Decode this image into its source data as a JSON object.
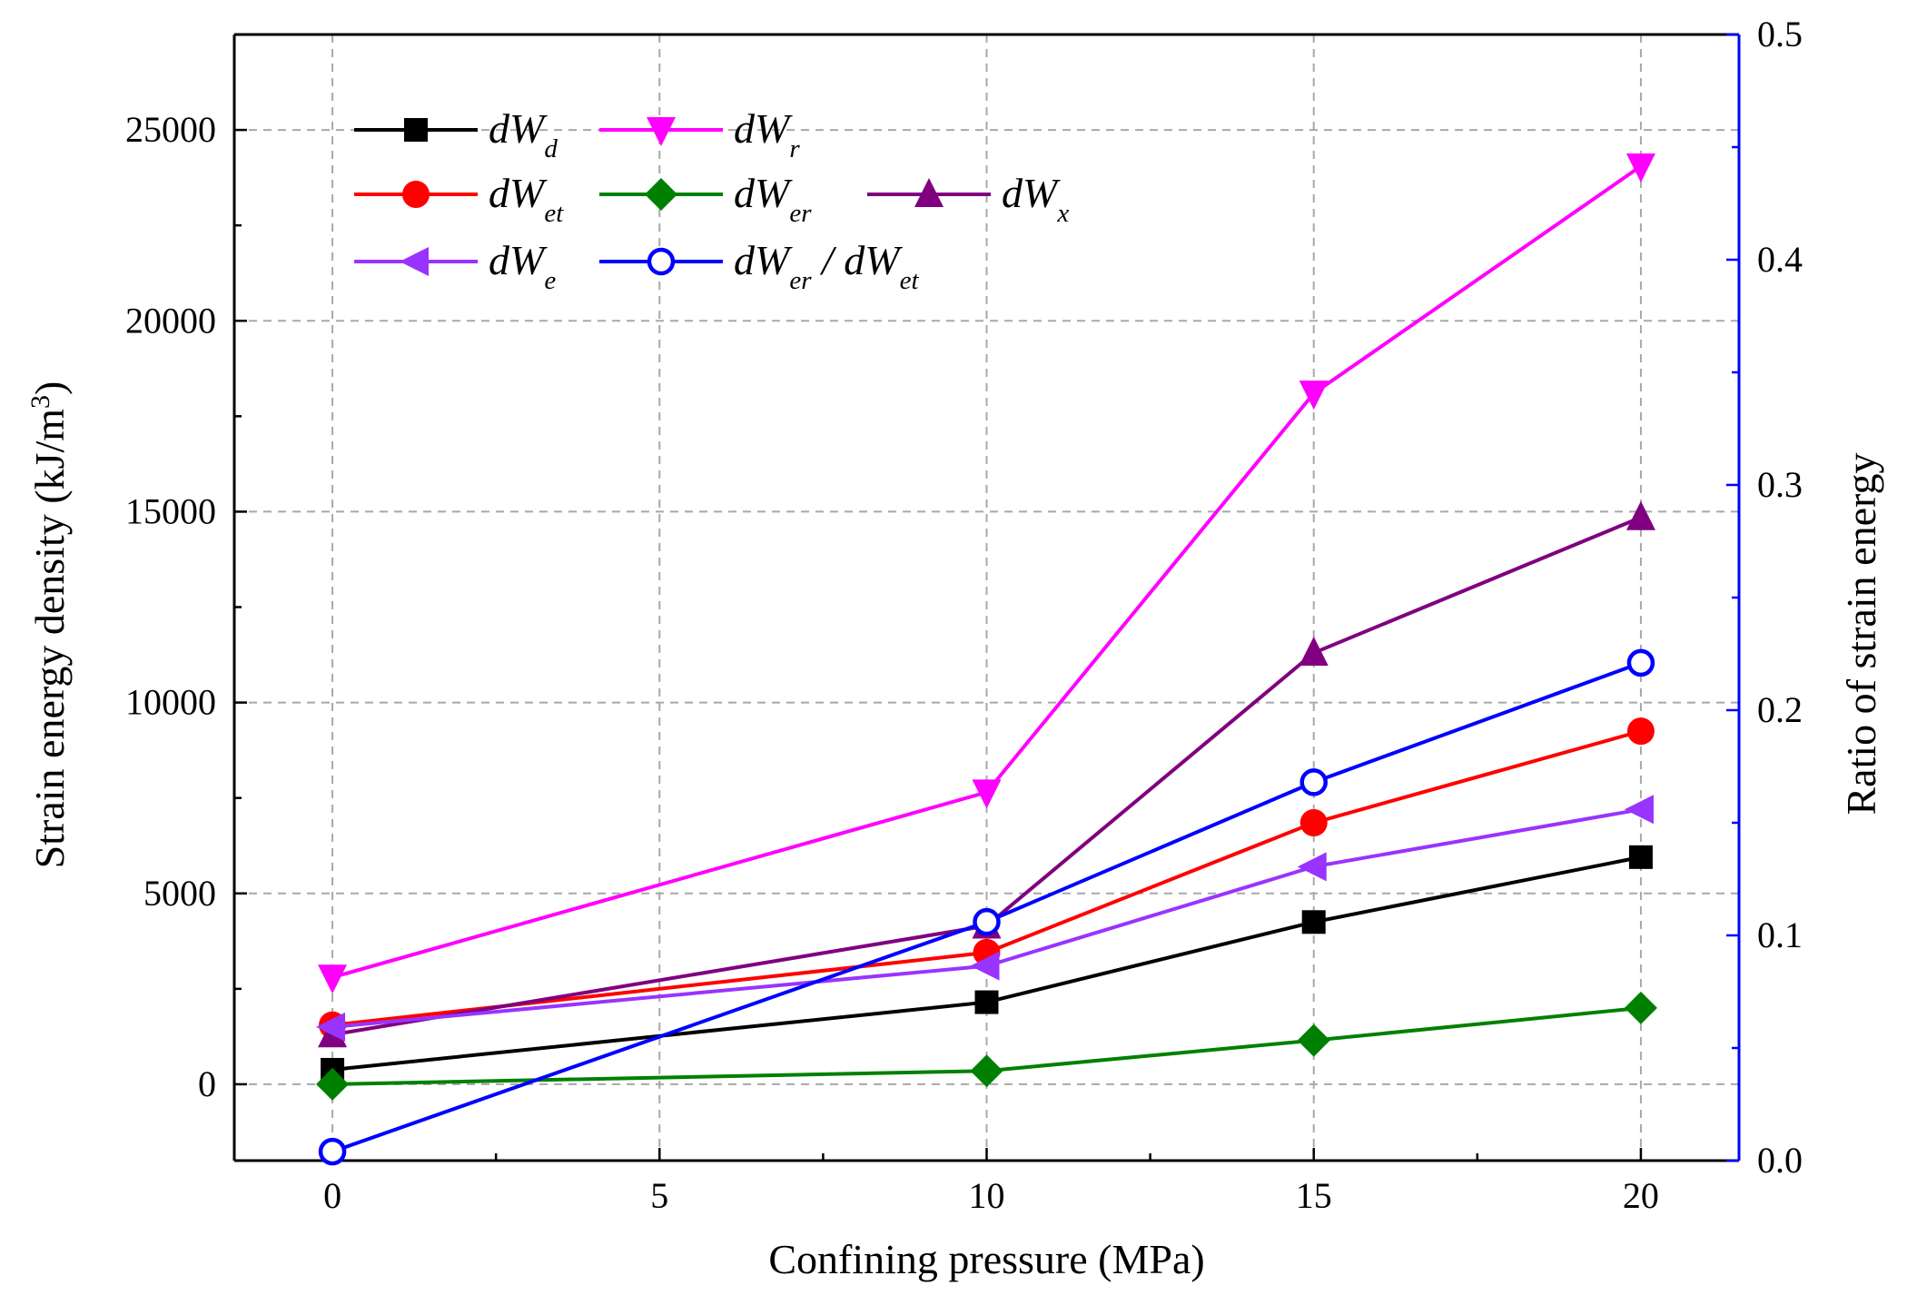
{
  "chart_data": {
    "type": "line",
    "x": [
      0,
      10,
      15,
      20
    ],
    "xlabel": "Confining pressure (MPa)",
    "ylabel": "Strain energy density (kJ/m",
    "ylabel_sup": "3",
    "ylabel_close": ")",
    "y2label": "Ratio of strain energy",
    "xlim": [
      -1.5,
      21.5
    ],
    "ylim": [
      -2000,
      27500
    ],
    "y2lim": [
      0,
      0.5
    ],
    "xticks": [
      0,
      5,
      10,
      15,
      20
    ],
    "yticks": [
      0,
      5000,
      10000,
      15000,
      20000,
      25000
    ],
    "y2ticks": [
      0.0,
      0.1,
      0.2,
      0.3,
      0.4,
      0.5
    ],
    "y2tick_labels": [
      "0.0",
      "0.1",
      "0.2",
      "0.3",
      "0.4",
      "0.5"
    ],
    "grid": true,
    "legend_position": "top-left",
    "right_axis_color": "#0000ff",
    "series": [
      {
        "name": "dWd",
        "label_main": "dW",
        "label_sub": "d",
        "axis": "left",
        "color": "#000000",
        "marker": "square",
        "values": [
          380,
          2150,
          4250,
          5950
        ]
      },
      {
        "name": "dWr",
        "label_main": "dW",
        "label_sub": "r",
        "axis": "left",
        "color": "#ff00ff",
        "marker": "triangle-down",
        "values": [
          2800,
          7650,
          18100,
          24050
        ]
      },
      {
        "name": "dWet",
        "label_main": "dW",
        "label_sub": "et",
        "axis": "left",
        "color": "#ff0000",
        "marker": "circle",
        "values": [
          1550,
          3450,
          6850,
          9250
        ]
      },
      {
        "name": "dWer",
        "label_main": "dW",
        "label_sub": "er",
        "axis": "left",
        "color": "#008000",
        "marker": "diamond",
        "values": [
          0,
          350,
          1150,
          2000
        ]
      },
      {
        "name": "dWx",
        "label_main": "dW",
        "label_sub": "x",
        "axis": "left",
        "color": "#800080",
        "marker": "triangle-up",
        "values": [
          1300,
          4150,
          11300,
          14850
        ]
      },
      {
        "name": "dWe",
        "label_main": "dW",
        "label_sub": "e",
        "axis": "left",
        "color": "#9933ff",
        "marker": "triangle-left",
        "values": [
          1500,
          3100,
          5700,
          7200
        ]
      },
      {
        "name": "dWer / dWet",
        "label_main": "dW",
        "label_sub": "er",
        "label_mid": " / dW",
        "label_sub2": "et",
        "axis": "right",
        "color": "#0000ff",
        "marker": "open-circle",
        "values": [
          0.004,
          0.106,
          0.168,
          0.221
        ]
      }
    ]
  }
}
